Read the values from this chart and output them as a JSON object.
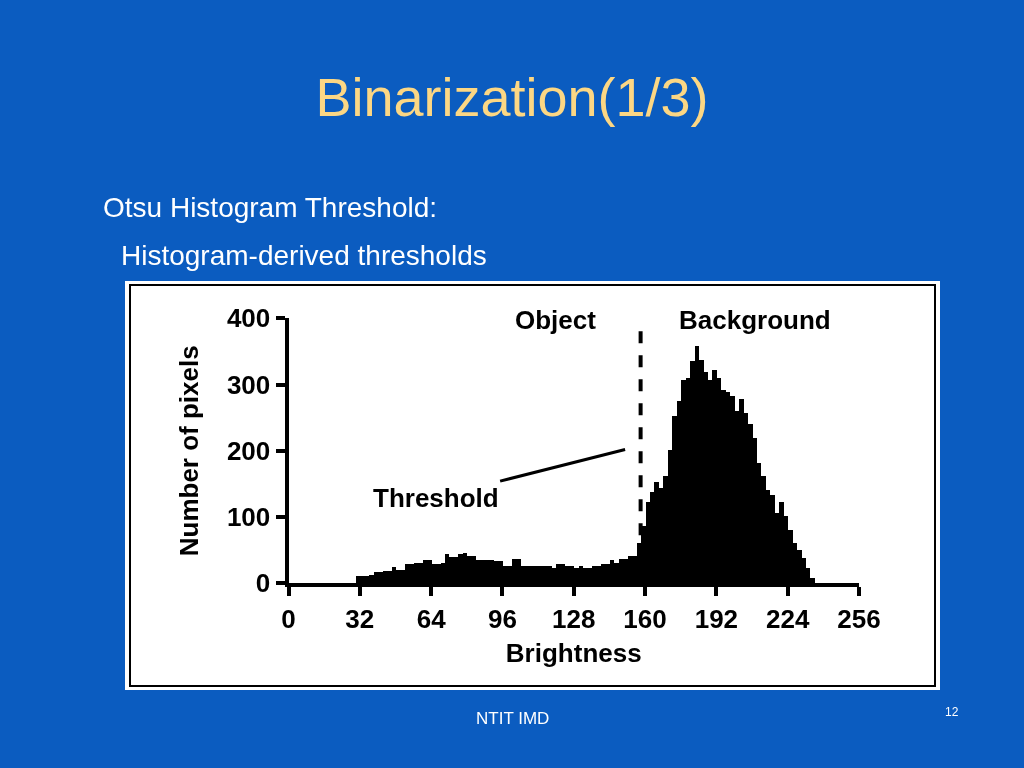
{
  "chart_data": {
    "type": "histogram",
    "title": "Binarization(1/3)",
    "subtitle": "Otsu Histogram Threshold:",
    "xlabel": "Brightness",
    "ylabel": "Number of pixels",
    "color": "#000000",
    "bins": [
      30,
      32,
      34,
      36,
      38,
      40,
      42,
      44,
      46,
      48,
      50,
      52,
      54,
      56,
      58,
      60,
      62,
      64,
      66,
      68,
      70,
      72,
      74,
      76,
      78,
      80,
      82,
      84,
      86,
      88,
      90,
      92,
      94,
      96,
      98,
      100,
      102,
      104,
      106,
      108,
      110,
      112,
      114,
      116,
      118,
      120,
      122,
      124,
      126,
      128,
      130,
      132,
      134,
      136,
      138,
      140,
      142,
      144,
      146,
      148,
      150,
      152,
      154,
      156,
      158,
      160,
      162,
      164,
      166,
      168,
      170,
      172,
      174,
      176,
      178,
      180,
      182,
      184,
      186,
      188,
      190,
      192,
      194,
      196,
      198,
      200,
      202,
      204,
      206,
      208,
      210,
      212,
      214,
      216,
      218,
      220,
      222,
      224,
      226,
      228,
      230,
      232,
      234,
      236
    ],
    "values": [
      11,
      10,
      10,
      12,
      16,
      16,
      18,
      18,
      24,
      20,
      19,
      28,
      28,
      30,
      30,
      34,
      34,
      28,
      28,
      30,
      44,
      40,
      40,
      44,
      45,
      41,
      41,
      34,
      34,
      34,
      34,
      33,
      33,
      25,
      25,
      36,
      36,
      25,
      25,
      25,
      25,
      25,
      25,
      25,
      22,
      28,
      28,
      25,
      25,
      22,
      25,
      22,
      22,
      25,
      25,
      28,
      28,
      34,
      30,
      36,
      36,
      41,
      41,
      60,
      86,
      123,
      138,
      153,
      143,
      161,
      201,
      252,
      274,
      307,
      309,
      335,
      357,
      337,
      319,
      307,
      322,
      309,
      292,
      289,
      282,
      259,
      277,
      257,
      240,
      219,
      181,
      161,
      140,
      133,
      106,
      123,
      101,
      80,
      60,
      50,
      38,
      23,
      8
    ],
    "xlim": [
      0,
      256
    ],
    "xticks": [
      0,
      32,
      64,
      96,
      128,
      160,
      192,
      224,
      256
    ],
    "ylim": [
      0,
      400
    ],
    "yticks": [
      0,
      100,
      200,
      300,
      400
    ],
    "ref_lines": [
      {
        "axis": "x",
        "value": 158,
        "label": "Threshold",
        "color": "#000000",
        "line_style": "dashed"
      }
    ],
    "annotations": [
      "Object",
      "Background",
      "Histogram-derived thresholds",
      "NTIT IMD",
      "12"
    ]
  }
}
